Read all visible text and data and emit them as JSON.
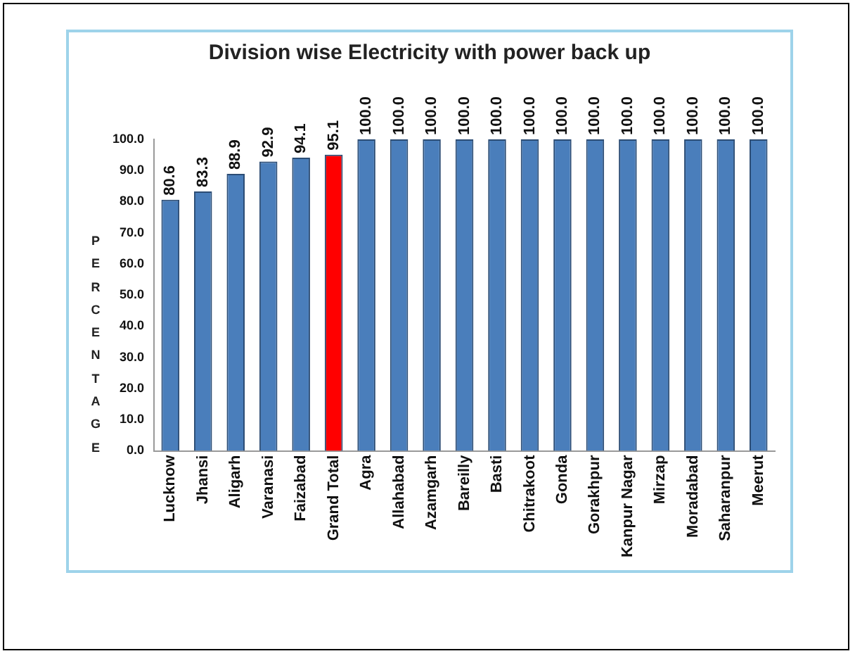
{
  "chart_data": {
    "type": "bar",
    "title": "Division wise Electricity with power back up",
    "ylabel": "PERCENTAGE",
    "categories": [
      "Lucknow",
      "Jhansi",
      "Aligarh",
      "Varanasi",
      "Faizabad",
      "Grand Total",
      "Agra",
      "Allahabad",
      "Azamgarh",
      "Bareilly",
      "Basti",
      "Chitrakoot",
      "Gonda",
      "Gorakhpur",
      "Kanpur Nagar",
      "Mirzap",
      "Moradabad",
      "Saharanpur",
      "Meerut"
    ],
    "values": [
      80.6,
      83.3,
      88.9,
      92.9,
      94.1,
      95.1,
      100,
      100,
      100,
      100,
      100,
      100,
      100,
      100,
      100,
      100,
      100,
      100,
      100
    ],
    "value_labels": [
      "80.6",
      "83.3",
      "88.9",
      "92.9",
      "94.1",
      "95.1",
      "100.0",
      "100.0",
      "100.0",
      "100.0",
      "100.0",
      "100.0",
      "100.0",
      "100.0",
      "100.0",
      "100.0",
      "100.0",
      "100.0",
      "100.0"
    ],
    "colors": [
      "#4a7ebb",
      "#4a7ebb",
      "#4a7ebb",
      "#4a7ebb",
      "#4a7ebb",
      "#ff0000",
      "#4a7ebb",
      "#4a7ebb",
      "#4a7ebb",
      "#4a7ebb",
      "#4a7ebb",
      "#4a7ebb",
      "#4a7ebb",
      "#4a7ebb",
      "#4a7ebb",
      "#4a7ebb",
      "#4a7ebb",
      "#4a7ebb",
      "#4a7ebb"
    ],
    "ylim": [
      0,
      100
    ],
    "yticks": [
      {
        "value": 0,
        "label": "0.0"
      },
      {
        "value": 10,
        "label": "10.0"
      },
      {
        "value": 20,
        "label": "20.0"
      },
      {
        "value": 30,
        "label": "30.0"
      },
      {
        "value": 40,
        "label": "40.0"
      },
      {
        "value": 50,
        "label": "50.0"
      },
      {
        "value": 60,
        "label": "60.0"
      },
      {
        "value": 70,
        "label": "70.0"
      },
      {
        "value": 80,
        "label": "80.0"
      },
      {
        "value": 90,
        "label": "90.0"
      },
      {
        "value": 100,
        "label": "100.0"
      }
    ],
    "grid": false,
    "legend": false
  }
}
